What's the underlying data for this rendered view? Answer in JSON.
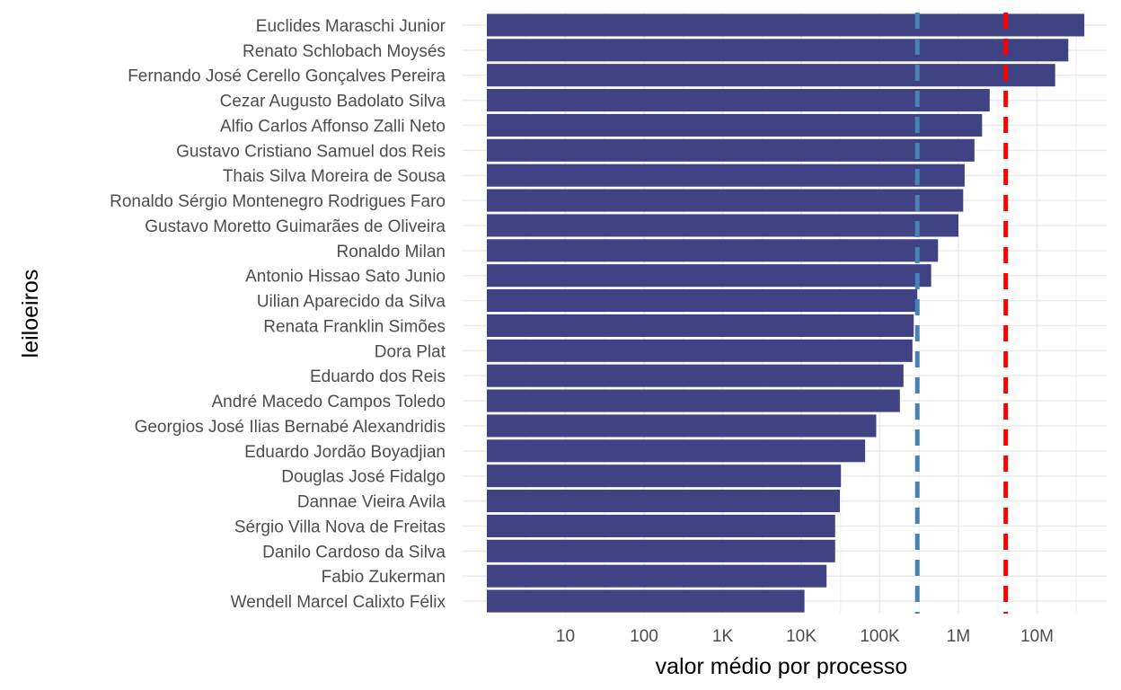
{
  "chart_data": {
    "type": "bar",
    "orientation": "horizontal",
    "xlabel": "valor médio por processo",
    "ylabel": "leiloeiros",
    "x_scale": "log10",
    "xlim": [
      1,
      50000000
    ],
    "x_ticks": [
      10,
      100,
      1000,
      10000,
      100000,
      1000000,
      10000000
    ],
    "x_tick_labels": [
      "10",
      "100",
      "1K",
      "10K",
      "100K",
      "1M",
      "10M"
    ],
    "grid": true,
    "bar_color": "#3f4383",
    "categories": [
      "Euclides Maraschi Junior",
      "Renato Schlobach Moysés",
      "Fernando José Cerello Gonçalves Pereira",
      "Cezar Augusto Badolato Silva",
      "Alfio Carlos Affonso Zalli Neto",
      "Gustavo Cristiano Samuel dos Reis",
      "Thais Silva Moreira de Sousa",
      "Ronaldo Sérgio Montenegro Rodrigues Faro",
      "Gustavo Moretto Guimarães de Oliveira",
      "Ronaldo Milan",
      "Antonio Hissao Sato Junio",
      "Uilian Aparecido da Silva",
      "Renata Franklin Simões",
      "Dora Plat",
      "Eduardo dos Reis",
      "André Macedo Campos Toledo",
      "Georgios José Ilias Bernabé Alexandridis",
      "Eduardo Jordão Boyadjian",
      "Douglas José Fidalgo",
      "Dannae Vieira Avila",
      "Sérgio Villa Nova de Freitas",
      "Danilo Cardoso da Silva",
      "Fabio Zukerman",
      "Wendell Marcel Calixto Félix"
    ],
    "values": [
      40000000,
      25000000,
      17000000,
      2500000,
      2000000,
      1600000,
      1200000,
      1150000,
      1000000,
      550000,
      450000,
      300000,
      270000,
      260000,
      200000,
      180000,
      90000,
      65000,
      32000,
      31000,
      27000,
      27000,
      21000,
      11000
    ],
    "reference_lines": [
      {
        "value": 300000,
        "color": "#4682b4",
        "style": "dashed"
      },
      {
        "value": 4000000,
        "color": "#ff0000",
        "style": "dashed"
      }
    ]
  }
}
